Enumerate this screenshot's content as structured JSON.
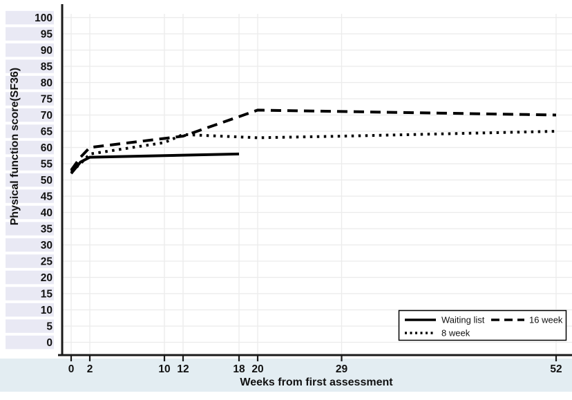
{
  "chart_data": {
    "type": "line",
    "title": "",
    "xlabel": "Weeks from first assessment",
    "ylabel": "Physical function score(SF36)",
    "x_ticks": [
      0,
      2,
      10,
      12,
      18,
      20,
      29,
      52
    ],
    "y_ticks": [
      0,
      5,
      10,
      15,
      20,
      25,
      30,
      35,
      40,
      45,
      50,
      55,
      60,
      65,
      70,
      75,
      80,
      85,
      90,
      95,
      100
    ],
    "xlim": [
      0,
      52
    ],
    "ylim": [
      0,
      100
    ],
    "grid": true,
    "legend_position": "inside-bottom-right",
    "series": [
      {
        "name": "Waiting list",
        "style": "solid",
        "x": [
          0,
          1,
          2,
          18
        ],
        "y": [
          52,
          55.5,
          57,
          58
        ]
      },
      {
        "name": "8 week",
        "style": "dotted",
        "x": [
          0,
          1,
          2,
          10,
          12,
          20,
          29,
          52
        ],
        "y": [
          52.5,
          55,
          58,
          61.5,
          64,
          63,
          63.5,
          65
        ]
      },
      {
        "name": "16 week",
        "style": "dashed",
        "x": [
          0,
          1,
          2,
          12,
          20,
          52
        ],
        "y": [
          53,
          57,
          60,
          63.5,
          71.5,
          70
        ]
      }
    ]
  },
  "colors": {
    "line": "#000000",
    "grid": "#ebebeb",
    "y_band": "#e9e9f4",
    "x_band": "#e3edf2",
    "axis": "#1a1a1a",
    "text": "#111111",
    "background": "#ffffff"
  }
}
